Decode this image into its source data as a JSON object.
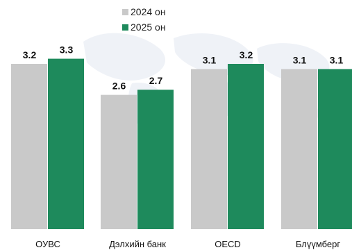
{
  "colors": {
    "series_2024": "#c9c9c9",
    "series_2025": "#1e8a5c",
    "map_background": "#edf1f6"
  },
  "chart_data": {
    "type": "bar",
    "categories": [
      "ОУВС",
      "Дэлхийн банк",
      "OECD",
      "Блүүмберг"
    ],
    "series": [
      {
        "name": "2024 он",
        "values": [
          3.2,
          2.6,
          3.1,
          3.1
        ]
      },
      {
        "name": "2025 он",
        "values": [
          3.3,
          2.7,
          3.2,
          3.1
        ]
      }
    ],
    "data_labels": [
      [
        "3.2",
        "2.6",
        "3.1",
        "3.1"
      ],
      [
        "3.3",
        "2.7",
        "3.2",
        "3.1"
      ]
    ],
    "legend_position": "top-left",
    "grid": false,
    "ylim": [
      0,
      3.6
    ]
  }
}
